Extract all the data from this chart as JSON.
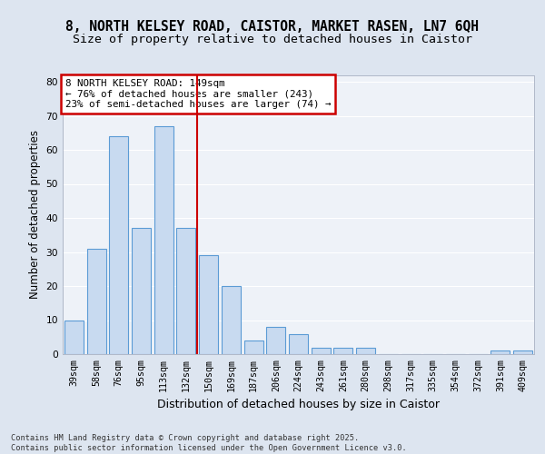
{
  "title1": "8, NORTH KELSEY ROAD, CAISTOR, MARKET RASEN, LN7 6QH",
  "title2": "Size of property relative to detached houses in Caistor",
  "xlabel": "Distribution of detached houses by size in Caistor",
  "ylabel": "Number of detached properties",
  "categories": [
    "39sqm",
    "58sqm",
    "76sqm",
    "95sqm",
    "113sqm",
    "132sqm",
    "150sqm",
    "169sqm",
    "187sqm",
    "206sqm",
    "224sqm",
    "243sqm",
    "261sqm",
    "280sqm",
    "298sqm",
    "317sqm",
    "335sqm",
    "354sqm",
    "372sqm",
    "391sqm",
    "409sqm"
  ],
  "values": [
    10,
    31,
    64,
    37,
    67,
    37,
    29,
    20,
    4,
    8,
    6,
    2,
    2,
    2,
    0,
    0,
    0,
    0,
    0,
    1,
    1
  ],
  "bar_color": "#c8daf0",
  "bar_edge_color": "#5b9bd5",
  "annotation_text": "8 NORTH KELSEY ROAD: 149sqm\n← 76% of detached houses are smaller (243)\n23% of semi-detached houses are larger (74) →",
  "annotation_box_facecolor": "#ffffff",
  "annotation_box_edgecolor": "#cc0000",
  "footer_text": "Contains HM Land Registry data © Crown copyright and database right 2025.\nContains public sector information licensed under the Open Government Licence v3.0.",
  "ylim": [
    0,
    82
  ],
  "yticks": [
    0,
    10,
    20,
    30,
    40,
    50,
    60,
    70,
    80
  ],
  "bg_color": "#dde5f0",
  "plot_bg_color": "#eef2f8",
  "grid_color": "#ffffff",
  "red_line_color": "#cc0000",
  "red_line_x": 5.5,
  "title_fontsize": 10.5,
  "subtitle_fontsize": 9.5,
  "tick_fontsize": 7.2,
  "ylabel_fontsize": 8.5,
  "xlabel_fontsize": 9
}
